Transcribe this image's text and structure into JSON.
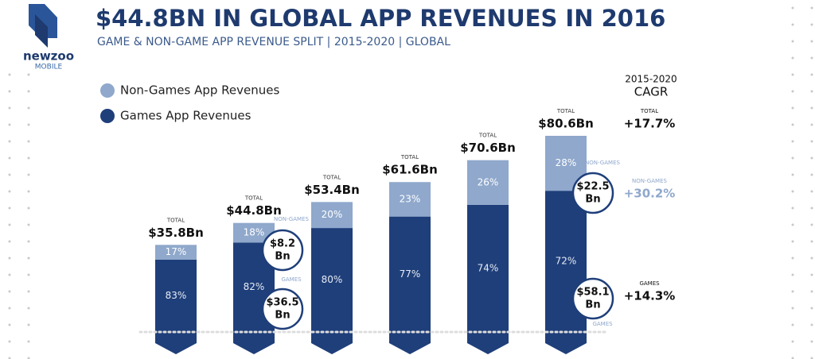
{
  "brand": {
    "name": "newzoo",
    "unit": "MOBILE"
  },
  "chart_data": {
    "type": "stacked_bar",
    "title": "$44.8BN IN GLOBAL APP REVENUES IN 2016",
    "subtitle": "GAME & NON-GAME APP REVENUE SPLIT | 2015-2020 | GLOBAL",
    "categories": [
      null,
      null,
      null,
      null,
      null,
      null
    ],
    "series": [
      {
        "name": "Games App Revenues",
        "color": "#1f3f7a",
        "values": [
          83,
          82,
          80,
          77,
          74,
          72
        ],
        "value_labels": [
          "83%",
          "82%",
          "80%",
          "77%",
          "74%",
          "72%"
        ]
      },
      {
        "name": "Non-Games App Revenues",
        "color": "#8fa8cc",
        "values": [
          17,
          18,
          20,
          23,
          26,
          28
        ],
        "value_labels": [
          "17%",
          "18%",
          "20%",
          "23%",
          "26%",
          "28%"
        ]
      }
    ],
    "totals": {
      "label": "TOTAL",
      "values": [
        35.8,
        44.8,
        53.4,
        61.6,
        70.6,
        80.6
      ],
      "value_labels": [
        "$35.8Bn",
        "$44.8Bn",
        "$53.4Bn",
        "$61.6Bn",
        "$70.6Bn",
        "$80.6Bn"
      ]
    },
    "annotations": [
      {
        "label": "NON-GAMES",
        "text": [
          "$8.2",
          "Bn"
        ]
      },
      {
        "label": "GAMES",
        "text": [
          "$36.5",
          "Bn"
        ]
      },
      {
        "label": "NON-GAMES",
        "text": [
          "$22.5",
          "Bn"
        ]
      },
      {
        "label": "GAMES",
        "text": [
          "$58.1",
          "Bn"
        ]
      }
    ],
    "cagr": {
      "title": [
        "2015-2020",
        "CAGR"
      ],
      "rows": [
        {
          "label": "TOTAL",
          "value": "+17.7%"
        },
        {
          "label": "NON-GAMES",
          "value": "+30.2%"
        },
        {
          "label": "GAMES",
          "value": "+14.3%"
        }
      ]
    }
  }
}
